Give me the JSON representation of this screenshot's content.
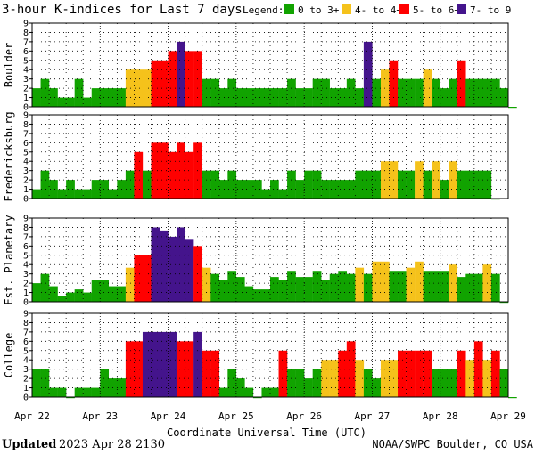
{
  "chart_data": {
    "type": "bar",
    "title": "3-hour K-indices for Last 7 days",
    "legend": {
      "label": "Legend:",
      "placement": "top-right",
      "items": [
        {
          "label": "0 to 3+",
          "color": "#11a300"
        },
        {
          "label": "4- to 4+",
          "color": "#f5c21b"
        },
        {
          "label": "5- to 6+",
          "color": "#ff0000"
        },
        {
          "label": "7- to 9",
          "color": "#44148c"
        }
      ]
    },
    "ylim": [
      0,
      9
    ],
    "yticks": [
      "0",
      "1",
      "2",
      "3",
      "4",
      "5",
      "6",
      "7",
      "8",
      "9"
    ],
    "grid": true,
    "x_ticks": [
      "Apr 22",
      "Apr 23",
      "Apr 24",
      "Apr 25",
      "Apr 26",
      "Apr 27",
      "Apr 28",
      "Apr 29"
    ],
    "xlabel": "Coordinate Universal Time (UTC)",
    "intervals_per_day": 8,
    "panels": [
      {
        "name": "Boulder",
        "values": [
          2,
          3,
          2,
          1,
          1,
          3,
          1,
          2,
          2,
          2,
          2,
          4,
          4,
          4,
          5,
          5,
          6,
          7,
          6,
          6,
          3,
          3,
          2,
          3,
          2,
          2,
          2,
          2,
          2,
          2,
          3,
          2,
          2,
          3,
          3,
          2,
          2,
          3,
          2,
          7,
          3,
          4,
          5,
          3,
          3,
          3,
          4,
          3,
          2,
          3,
          5,
          3,
          3,
          3,
          3,
          2,
          0
        ]
      },
      {
        "name": "Fredericksburg",
        "values": [
          1,
          3,
          2,
          1,
          2,
          1,
          1,
          2,
          2,
          1,
          2,
          3,
          5,
          3,
          6,
          6,
          5,
          6,
          5,
          6,
          3,
          3,
          2,
          3,
          2,
          2,
          2,
          1,
          2,
          1,
          3,
          2,
          3,
          3,
          2,
          2,
          2,
          2,
          3,
          3,
          3,
          4,
          4,
          3,
          3,
          4,
          3,
          4,
          2,
          4,
          3,
          3,
          3,
          3,
          0
        ]
      },
      {
        "name": "Est. Planetary",
        "values": [
          2,
          3,
          1.67,
          0.67,
          1,
          1.33,
          1,
          2.33,
          2.33,
          1.67,
          1.67,
          3.67,
          5,
          5,
          8,
          7.67,
          7,
          8,
          6.67,
          6,
          3.67,
          3,
          2.33,
          3.33,
          2.67,
          1.67,
          1.33,
          1.33,
          2.67,
          2.33,
          3.33,
          2.67,
          2.67,
          3.33,
          2.33,
          3,
          3.33,
          3,
          3.67,
          3,
          4.33,
          4.33,
          3.33,
          3.33,
          3.67,
          4.33,
          3.33,
          3.33,
          3.33,
          4,
          2.67,
          3,
          3,
          4,
          3,
          0
        ]
      },
      {
        "name": "College",
        "values": [
          3,
          3,
          1,
          1,
          0,
          1,
          1,
          1,
          3,
          2,
          2,
          6,
          6,
          7,
          7,
          7,
          7,
          6,
          6,
          7,
          5,
          5,
          1,
          3,
          2,
          1,
          0,
          1,
          1,
          5,
          3,
          3,
          2,
          3,
          4,
          4,
          5,
          6,
          4,
          3,
          2,
          4,
          4,
          5,
          5,
          5,
          5,
          3,
          3,
          3,
          5,
          4,
          6,
          4,
          5,
          3,
          0
        ]
      }
    ]
  },
  "footer": {
    "updated_label": "Updated",
    "updated_value": "2023 Apr 28 2130",
    "source": "NOAA/SWPC Boulder, CO USA"
  }
}
